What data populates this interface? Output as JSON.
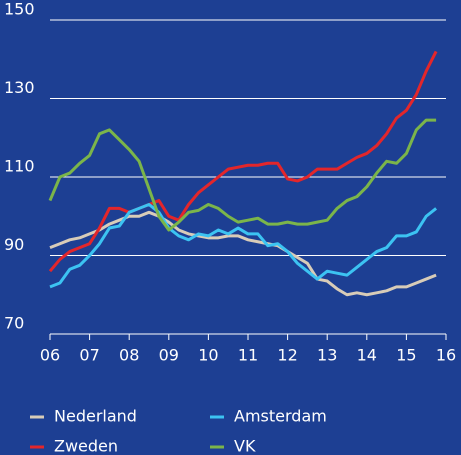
{
  "chart_data": {
    "type": "line",
    "x": [
      2006,
      2006.25,
      2006.5,
      2006.75,
      2007,
      2007.25,
      2007.5,
      2007.75,
      2008,
      2008.25,
      2008.5,
      2008.75,
      2009,
      2009.25,
      2009.5,
      2009.75,
      2010,
      2010.25,
      2010.5,
      2010.75,
      2011,
      2011.25,
      2011.5,
      2011.75,
      2012,
      2012.25,
      2012.5,
      2012.75,
      2013,
      2013.25,
      2013.5,
      2013.75,
      2014,
      2014.25,
      2014.5,
      2014.75,
      2015,
      2015.25,
      2015.5,
      2015.75
    ],
    "series": [
      {
        "name": "Nederland",
        "color": "#d8ccb8",
        "values": [
          92,
          93,
          94,
          94.5,
          95.5,
          96.5,
          98,
          99,
          100,
          100,
          101,
          100,
          98.5,
          96.5,
          95.5,
          95,
          94.5,
          94.5,
          95,
          95,
          94,
          93.5,
          93,
          92.5,
          91,
          89.5,
          88,
          84,
          83.5,
          81.5,
          80,
          80.5,
          80,
          80.5,
          81,
          82,
          82,
          83,
          84,
          85
        ]
      },
      {
        "name": "Zweden",
        "color": "#e3262b",
        "values": [
          86,
          89,
          91,
          92,
          93,
          97,
          102,
          102,
          101,
          102,
          103,
          104,
          100,
          99,
          103,
          106,
          108,
          110,
          112,
          112.5,
          113,
          113,
          113.5,
          113.5,
          109.5,
          109,
          110,
          112,
          112,
          112,
          113.5,
          115,
          116,
          118,
          121,
          125,
          127,
          131,
          137,
          142
        ]
      },
      {
        "name": "Amsterdam",
        "color": "#3cc3f2",
        "values": [
          82,
          83,
          86.5,
          87.5,
          90,
          93,
          97,
          97.5,
          101,
          102,
          103,
          101,
          97,
          95,
          94,
          95.5,
          95,
          96.5,
          95.5,
          97,
          95.5,
          95.5,
          92.5,
          93,
          91,
          88,
          86,
          84,
          86,
          85.5,
          85,
          87,
          89,
          91,
          92,
          95,
          95,
          96,
          100,
          102
        ]
      },
      {
        "name": "VK",
        "color": "#7bb54a",
        "values": [
          104,
          110,
          111,
          113.5,
          115.5,
          121,
          122,
          119.5,
          117,
          114,
          107,
          100,
          96.5,
          98.5,
          101,
          101.5,
          103,
          102,
          100,
          98.5,
          99,
          99.5,
          98,
          98,
          98.5,
          98,
          98,
          98.5,
          99,
          102,
          104,
          105,
          107.5,
          111,
          114,
          113.5,
          116,
          122,
          124.5,
          124.5
        ]
      }
    ],
    "xlim": [
      2006,
      2016
    ],
    "xticks": [
      {
        "value": 2006,
        "label": "06"
      },
      {
        "value": 2007,
        "label": "07"
      },
      {
        "value": 2008,
        "label": "08"
      },
      {
        "value": 2009,
        "label": "09"
      },
      {
        "value": 2010,
        "label": "10"
      },
      {
        "value": 2011,
        "label": "11"
      },
      {
        "value": 2012,
        "label": "12"
      },
      {
        "value": 2013,
        "label": "13"
      },
      {
        "value": 2014,
        "label": "14"
      },
      {
        "value": 2015,
        "label": "15"
      },
      {
        "value": 2016,
        "label": "16"
      }
    ],
    "ylim": [
      70,
      150
    ],
    "yticks": [
      70,
      90,
      110,
      130,
      150
    ],
    "grid": true
  }
}
